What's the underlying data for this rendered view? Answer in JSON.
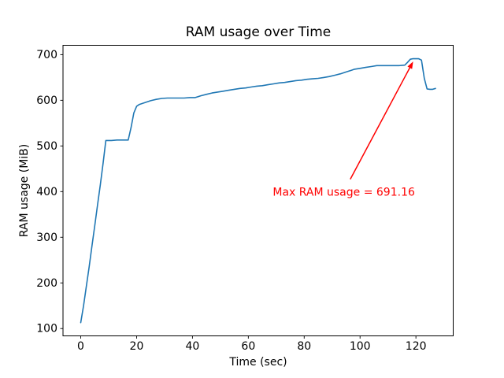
{
  "chart_data": {
    "type": "line",
    "title": "RAM usage over Time",
    "xlabel": "Time (sec)",
    "ylabel": "RAM usage (MiB)",
    "xlim": [
      -6.35,
      133.35
    ],
    "ylim": [
      84,
      720.5
    ],
    "x_ticks": [
      0,
      20,
      40,
      60,
      80,
      100,
      120
    ],
    "y_ticks": [
      100,
      200,
      300,
      400,
      500,
      600,
      700
    ],
    "grid": false,
    "legend": "none",
    "line_color": "#1f77b4",
    "background_color": "#ffffff",
    "spine_color": "#000000",
    "max_ram_mib": 691.16,
    "series": [
      {
        "name": "RAM usage",
        "points": [
          [
            0,
            113
          ],
          [
            1,
            150
          ],
          [
            2,
            192
          ],
          [
            3,
            235
          ],
          [
            4,
            280
          ],
          [
            5,
            325
          ],
          [
            6,
            370
          ],
          [
            7,
            415
          ],
          [
            8,
            462
          ],
          [
            9,
            512
          ],
          [
            11,
            512
          ],
          [
            13,
            513
          ],
          [
            15,
            513
          ],
          [
            17,
            513
          ],
          [
            18,
            540
          ],
          [
            19,
            572
          ],
          [
            20,
            587
          ],
          [
            21,
            591
          ],
          [
            23,
            595
          ],
          [
            25,
            599
          ],
          [
            27,
            602
          ],
          [
            29,
            604
          ],
          [
            31,
            605
          ],
          [
            33,
            605
          ],
          [
            35,
            605
          ],
          [
            37,
            605
          ],
          [
            39,
            606
          ],
          [
            41,
            606
          ],
          [
            43,
            610
          ],
          [
            45,
            613
          ],
          [
            47,
            616
          ],
          [
            49,
            618
          ],
          [
            51,
            620
          ],
          [
            53,
            622
          ],
          [
            55,
            624
          ],
          [
            57,
            626
          ],
          [
            59,
            627
          ],
          [
            61,
            629
          ],
          [
            63,
            631
          ],
          [
            65,
            632
          ],
          [
            67,
            634
          ],
          [
            69,
            636
          ],
          [
            71,
            638
          ],
          [
            73,
            639
          ],
          [
            75,
            641
          ],
          [
            77,
            643
          ],
          [
            79,
            644
          ],
          [
            81,
            646
          ],
          [
            83,
            647
          ],
          [
            85,
            648
          ],
          [
            87,
            650
          ],
          [
            89,
            652
          ],
          [
            91,
            655
          ],
          [
            93,
            658
          ],
          [
            95,
            662
          ],
          [
            97,
            666
          ],
          [
            98,
            668
          ],
          [
            100,
            670
          ],
          [
            102,
            672
          ],
          [
            104,
            674
          ],
          [
            106,
            676
          ],
          [
            108,
            676
          ],
          [
            110,
            676
          ],
          [
            112,
            676
          ],
          [
            114,
            676
          ],
          [
            116,
            677
          ],
          [
            117,
            683
          ],
          [
            118,
            690
          ],
          [
            119,
            691.16
          ],
          [
            120,
            691
          ],
          [
            121,
            691
          ],
          [
            122,
            688
          ],
          [
            123,
            648
          ],
          [
            124,
            625
          ],
          [
            125,
            624
          ],
          [
            126,
            624
          ],
          [
            127,
            626
          ]
        ]
      }
    ],
    "annotation": {
      "text": "Max RAM usage = 691.16",
      "color": "#ff0000",
      "text_at": [
        94.2,
        400
      ],
      "arrow_from": [
        96.5,
        427
      ],
      "arrow_to": [
        119.0,
        685
      ]
    }
  }
}
